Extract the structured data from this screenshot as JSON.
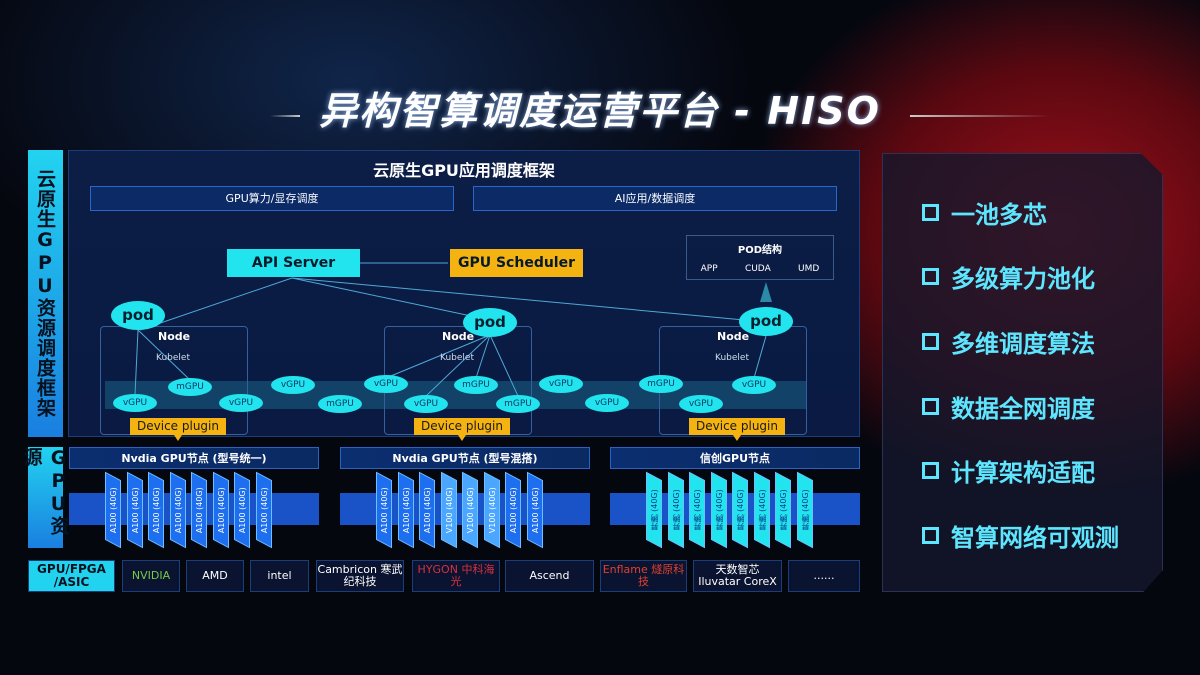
{
  "title": "异构智算调度运营平台 - HISO",
  "side_labels": {
    "top": "云原生GPU资源调度框架",
    "bottom": "GPU资源"
  },
  "framework": {
    "title": "云原生GPU应用调度框架",
    "sub": [
      "GPU算力/显存调度",
      "AI应用/数据调度"
    ]
  },
  "diagram": {
    "api_server": "API Server",
    "gpu_scheduler": "GPU Scheduler",
    "pod_struct": {
      "title": "POD结构",
      "items": [
        "APP",
        "CUDA",
        "UMD"
      ]
    },
    "pod": "pod",
    "node": "Node",
    "kubelet": "Kubelet",
    "device_plugin": "Device plugin",
    "vgpus": [
      "vGPU",
      "mGPU",
      "vGPU",
      "vGPU",
      "mGPU",
      "vGPU",
      "vGPU",
      "mGPU",
      "mGPU",
      "vGPU",
      "vGPU",
      "mGPU",
      "vGPU",
      "vGPU"
    ]
  },
  "gpu_nodes": [
    {
      "title": "Nvdia GPU节点 (型号统一)",
      "cards": [
        "A100 (40G)",
        "A100 (40G)",
        "A100 (40G)",
        "A100 (40G)",
        "A100 (40G)",
        "A100 (40G)",
        "A100 (40G)",
        "A100 (40G)"
      ]
    },
    {
      "title": "Nvdia GPU节点 (型号混搭)",
      "cards": [
        "A100 (40G)",
        "A100 (40G)",
        "A100 (40G)",
        "V100 (40G)",
        "V100 (40G)",
        "V100 (40G)",
        "A100 (40G)",
        "A100 (40G)"
      ]
    },
    {
      "title": "信创GPU节点",
      "cards": [
        "昇腾 (40G)",
        "昇腾 (40G)",
        "昇腾 (40G)",
        "昇腾 (40G)",
        "昇腾 (40G)",
        "昇腾 (40G)",
        "昇腾 (40G)",
        "昇腾 (40G)"
      ]
    }
  ],
  "vendors": {
    "label": "GPU/FPGA /ASIC",
    "logos": [
      "NVIDIA",
      "AMD",
      "intel",
      "Cambricon 寒武纪科技",
      "HYGON 中科海光",
      "Ascend",
      "Enflame 燧原科技",
      "天数智芯 Iluvatar CoreX",
      "......"
    ]
  },
  "features": [
    "一池多芯",
    "多级算力池化",
    "多维调度算法",
    "数据全网调度",
    "计算架构适配",
    "智算网络可观测"
  ],
  "colors": {
    "cyan": "#22e4ee",
    "orange": "#f5b311",
    "blue": "#1a52c8",
    "red_glow": "#a0101c"
  }
}
